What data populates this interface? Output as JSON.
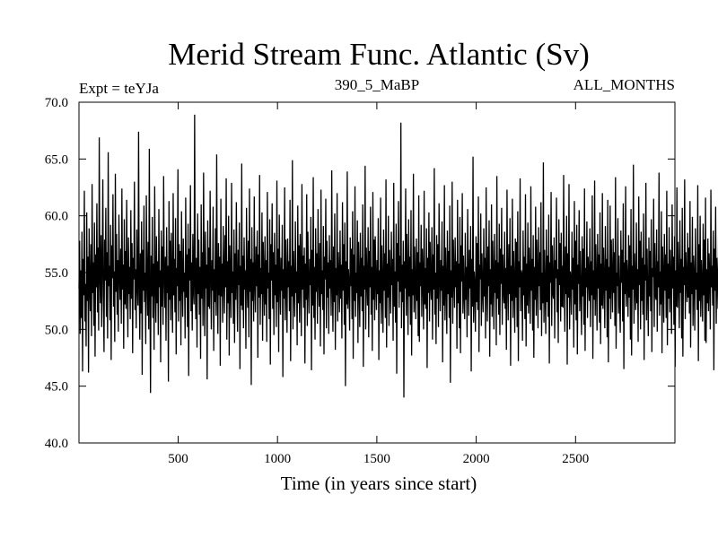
{
  "chart_data": {
    "type": "line",
    "title": "Merid Stream Func. Atlantic (Sv)",
    "subtitle_left": "Expt = teYJa",
    "subtitle_center": "390_5_MaBP",
    "subtitle_right": "ALL_MONTHS",
    "xlabel": "Time (in years since start)",
    "ylabel": "",
    "xlim": [
      1,
      3000
    ],
    "ylim": [
      40.0,
      70.0
    ],
    "x_ticks": [
      500,
      1000,
      1500,
      2000,
      2500
    ],
    "x_tick_labels": [
      "500",
      "1000",
      "1500",
      "2000",
      "2500"
    ],
    "y_ticks": [
      40,
      45,
      50,
      55,
      60,
      65,
      70
    ],
    "y_tick_labels": [
      "40.0",
      "45.0",
      "50.0",
      "55.0",
      "60.0",
      "65.0",
      "70.0"
    ],
    "grid": false,
    "line_color": "#000000",
    "series": [
      {
        "x_start": 1,
        "x_step": 3,
        "values": [
          53.6,
          57.8,
          49.6,
          55.2,
          51.0,
          58.6,
          46.3,
          56.2,
          53.0,
          62.2,
          50.7,
          54.0,
          48.5,
          60.3,
          52.5,
          56.4,
          46.2,
          58.9,
          54.2,
          51.6,
          57.5,
          49.4,
          62.8,
          53.2,
          55.9,
          50.3,
          59.4,
          47.6,
          56.6,
          53.7,
          61.1,
          51.5,
          57.2,
          49.9,
          66.9,
          54.6,
          52.3,
          58.3,
          50.2,
          55.4,
          63.2,
          52.8,
          48.0,
          57.9,
          54.3,
          60.7,
          51.1,
          56.8,
          49.2,
          65.6,
          53.8,
          55.6,
          50.8,
          59.2,
          47.3,
          57.4,
          54.5,
          61.9,
          52.0,
          55.1,
          48.9,
          63.7,
          53.3,
          58.4,
          51.3,
          56.1,
          49.8,
          60.1,
          54.9,
          52.6,
          57.1,
          50.5,
          62.4,
          53.5,
          55.7,
          48.3,
          59.7,
          52.2,
          56.9,
          51.8,
          61.4,
          54.1,
          49.3,
          58.1,
          53.1,
          55.5,
          50.9,
          60.5,
          52.7,
          57.6,
          47.9,
          56.3,
          54.4,
          63.0,
          51.7,
          55.3,
          50.1,
          58.8,
          53.9,
          52.1,
          67.4,
          54.0,
          49.1,
          56.7,
          51.4,
          59.5,
          46.0,
          57.0,
          53.4,
          60.9,
          52.4,
          55.0,
          48.7,
          61.8,
          54.7,
          51.2,
          57.7,
          50.0,
          65.9,
          53.6,
          44.4,
          56.5,
          52.9,
          59.9,
          51.0,
          55.8,
          48.2,
          62.6,
          54.2,
          50.6,
          58.2,
          52.3,
          56.0,
          49.5,
          60.6,
          53.7,
          55.2,
          47.1,
          58.7,
          52.0,
          57.3,
          50.4,
          63.5,
          54.8,
          51.9,
          56.4,
          49.0,
          59.0,
          53.2,
          55.6,
          45.4,
          61.3,
          52.6,
          57.8,
          50.8,
          58.5,
          54.1,
          49.7,
          62.0,
          53.0,
          56.2,
          51.5,
          59.8,
          47.8,
          55.4,
          53.8,
          64.1,
          50.7,
          57.5,
          52.5,
          56.9,
          48.6,
          60.4,
          54.6,
          51.1,
          58.0,
          53.3,
          55.0,
          49.2,
          61.6,
          52.8,
          56.6,
          50.2,
          59.3,
          45.9,
          57.1,
          54.3,
          62.7,
          51.6,
          55.9,
          49.9,
          58.4,
          53.5,
          52.2,
          68.9,
          54.0,
          50.9,
          56.3,
          48.4,
          60.2,
          53.1,
          57.9,
          51.3,
          55.5,
          47.4,
          61.0,
          52.7,
          56.8,
          50.3,
          63.8,
          54.5,
          49.4,
          58.6,
          53.6,
          55.7,
          45.6,
          59.6,
          52.0,
          57.2,
          51.8,
          62.2,
          54.9,
          50.0,
          56.1,
          53.4,
          60.8,
          48.1,
          55.3,
          52.4,
          58.9,
          51.2,
          65.4,
          54.2,
          49.6,
          57.6,
          53.0,
          56.4,
          46.8,
          61.5,
          52.9,
          55.8,
          50.6,
          59.1,
          54.7,
          51.4,
          58.3,
          53.7,
          63.3,
          49.1,
          56.0,
          52.3,
          60.0,
          47.7,
          57.4,
          54.4,
          51.0,
          62.9,
          53.2,
          55.1,
          50.5,
          58.8,
          48.8,
          56.7,
          52.6,
          61.2,
          54.1,
          49.8,
          57.0,
          53.9,
          59.4,
          46.5,
          55.6,
          52.1,
          64.6,
          51.7,
          56.5,
          50.1,
          58.1,
          53.5,
          55.2,
          48.3,
          60.7,
          54.6,
          51.9,
          57.8,
          49.3,
          62.4,
          53.3,
          56.2,
          45.1,
          59.0,
          52.5,
          55.9,
          50.7,
          61.7,
          54.0,
          51.5,
          57.3,
          53.8,
          58.7,
          47.5,
          56.6,
          52.8,
          63.6,
          50.4,
          55.4,
          53.1,
          60.3,
          49.0,
          57.7,
          54.8,
          51.2,
          58.2,
          52.2,
          56.1,
          48.9,
          62.1,
          53.6,
          55.0,
          50.9,
          59.7,
          46.9,
          57.5,
          54.3,
          61.1,
          51.8,
          56.8,
          49.5,
          58.5,
          53.0,
          55.7,
          50.2,
          63.1,
          52.4,
          57.1,
          48.0,
          60.1,
          54.5,
          51.3,
          56.3,
          53.4,
          59.2,
          45.8,
          55.3,
          52.7,
          62.5,
          50.8,
          57.9,
          54.2,
          49.7,
          58.0,
          53.7,
          56.0,
          51.6,
          61.4,
          47.2,
          55.6,
          52.9,
          64.9,
          50.0,
          56.9,
          54.1,
          51.1,
          59.5,
          53.2,
          55.1,
          48.6,
          60.9,
          52.3,
          57.4,
          50.6,
          58.4,
          54.7,
          49.4,
          62.8,
          53.5,
          56.5,
          51.9,
          57.2,
          47.0,
          55.8,
          52.6,
          61.9,
          50.3,
          58.6,
          54.0,
          51.4,
          56.2,
          53.9,
          59.9,
          46.4,
          57.0,
          52.1,
          63.4,
          51.0,
          55.5,
          49.1,
          58.9,
          53.3,
          56.7,
          50.5,
          60.6,
          54.6,
          52.0,
          57.6,
          48.5,
          62.3,
          53.1,
          55.2,
          51.7,
          59.1,
          47.8,
          56.4,
          54.4,
          61.5,
          50.1,
          57.8,
          52.8,
          55.9,
          49.6,
          58.3,
          53.6,
          56.1,
          51.2,
          64.0,
          54.2,
          49.8,
          57.3,
          52.4,
          60.2,
          48.2,
          55.4,
          53.0,
          62.0,
          50.7,
          56.8,
          54.8,
          51.5,
          58.7,
          52.7,
          55.7,
          49.2,
          61.2,
          53.4,
          57.5,
          50.4,
          59.4,
          45.0,
          56.0,
          52.2,
          63.9,
          51.8,
          55.3,
          54.1,
          49.9,
          58.1,
          53.8,
          57.1,
          50.9,
          60.4,
          47.4,
          56.6,
          52.5,
          62.6,
          51.1,
          55.0,
          53.2,
          59.6,
          48.8,
          57.7,
          54.5,
          50.2,
          58.5,
          52.9,
          56.3,
          51.6,
          61.0,
          46.7,
          55.6,
          53.5,
          64.4,
          50.0,
          57.2,
          54.3,
          52.1,
          59.0,
          49.3,
          56.9,
          53.7,
          60.8,
          51.3,
          55.5,
          48.1,
          62.1,
          52.6,
          57.9,
          50.8,
          58.2,
          54.6,
          51.7,
          56.1,
          53.1,
          59.8,
          47.3,
          55.2,
          52.3,
          61.6,
          50.5,
          57.4,
          54.0,
          49.7,
          58.8,
          53.4,
          56.7,
          51.0,
          63.2,
          48.4,
          55.8,
          52.8,
          60.0,
          50.3,
          57.0,
          54.4,
          51.4,
          58.6,
          53.9,
          56.2,
          49.0,
          62.9,
          52.0,
          55.1,
          50.6,
          59.3,
          46.1,
          57.6,
          54.2,
          61.3,
          51.9,
          56.5,
          53.3,
          68.2,
          50.1,
          55.7,
          52.4,
          57.8,
          44.0,
          56.0,
          53.6,
          62.4,
          51.2,
          58.4,
          54.7,
          49.5,
          59.7,
          52.9,
          56.4,
          50.4,
          60.5,
          47.7,
          55.3,
          53.0,
          63.7,
          51.5,
          57.3,
          54.1,
          50.9,
          58.0,
          52.5,
          56.8,
          49.4,
          61.8,
          48.9,
          55.9,
          53.8,
          59.2,
          51.1,
          57.1,
          54.5,
          50.0,
          62.2,
          52.2,
          55.4,
          51.8,
          58.9,
          46.6,
          56.3,
          53.2,
          60.3,
          50.7,
          57.7,
          54.0,
          52.6,
          59.0,
          49.1,
          56.6,
          53.5,
          64.2,
          51.3,
          55.0,
          48.7,
          58.3,
          52.7,
          57.5,
          50.2,
          61.1,
          54.8,
          51.6,
          56.1,
          53.4,
          59.5,
          47.1,
          55.6,
          52.1,
          62.7,
          50.8,
          57.2,
          54.3,
          49.6,
          58.7,
          53.1,
          56.9,
          51.0,
          60.9,
          45.3,
          55.2,
          52.8,
          63.0,
          50.5,
          57.9,
          54.6,
          51.9,
          58.1,
          53.7,
          56.0,
          48.3,
          61.4,
          52.3,
          55.8,
          50.1,
          59.9,
          47.9,
          57.4,
          54.2,
          62.0,
          51.4,
          56.5,
          53.0,
          50.9,
          58.5,
          52.6,
          55.5,
          49.3,
          60.6,
          54.7,
          51.2,
          57.0,
          53.6,
          59.1,
          46.3,
          56.2,
          52.0,
          65.2,
          50.6,
          55.1,
          53.9,
          49.8,
          58.2,
          52.4,
          57.6,
          51.7,
          61.7,
          48.0,
          55.7,
          54.4,
          60.2,
          50.3,
          56.7,
          53.3,
          51.5,
          58.9,
          52.9,
          56.3,
          49.2,
          62.5,
          54.1,
          50.7,
          57.3,
          53.8,
          59.6,
          47.6,
          55.3,
          52.2,
          61.0,
          51.1,
          57.8,
          54.5,
          50.0,
          58.4,
          53.2,
          56.1,
          48.6,
          63.5,
          52.7,
          55.9,
          51.3,
          59.3,
          49.5,
          57.1,
          54.0,
          60.7,
          50.4,
          56.6,
          53.5,
          52.3,
          58.6,
          51.8,
          55.4,
          48.2,
          62.3,
          54.6,
          50.8,
          57.5,
          53.1,
          59.8,
          46.8,
          55.6,
          52.5,
          61.5,
          51.0,
          56.9,
          54.3,
          49.7,
          58.0,
          52.8,
          57.7,
          50.2,
          60.4,
          47.2,
          56.0,
          53.7,
          63.3,
          51.6,
          55.2,
          54.8,
          49.0,
          58.7,
          53.0,
          56.4,
          50.9,
          61.9,
          48.5,
          55.8,
          52.1,
          59.4,
          51.4,
          57.2,
          54.2,
          50.5,
          62.6,
          53.4,
          56.2,
          49.9,
          58.3,
          47.5,
          55.5,
          52.6,
          60.8,
          51.2,
          57.9,
          54.7,
          50.1,
          59.0,
          53.8,
          56.8,
          51.7,
          61.2,
          49.4,
          55.0,
          52.3,
          64.7,
          50.6,
          57.0,
          53.6,
          49.6,
          58.8,
          52.4,
          56.5,
          51.1,
          60.1,
          47.0,
          55.9,
          54.1,
          62.1,
          50.3,
          57.4,
          53.2,
          52.7,
          58.1,
          49.2,
          56.1,
          54.5,
          61.6,
          51.5,
          55.3,
          48.8,
          59.7,
          53.9,
          57.6,
          50.7,
          58.5,
          52.0,
          55.6,
          51.9,
          63.6,
          54.3,
          49.8,
          57.3,
          53.1,
          60.0,
          46.9,
          56.7,
          52.8,
          62.8,
          50.0,
          55.1,
          54.6,
          51.3,
          58.6,
          53.5,
          56.3,
          48.4,
          61.3,
          52.2,
          57.8,
          50.8,
          59.2,
          47.8,
          55.7,
          54.0,
          60.5,
          51.6,
          56.9,
          53.3,
          49.5,
          58.2,
          52.9,
          57.1,
          50.4,
          62.4,
          48.1,
          55.4,
          53.7,
          59.5,
          51.0,
          56.4,
          54.8,
          52.5,
          58.9,
          50.2,
          56.0,
          53.0,
          61.8,
          47.4,
          55.2,
          52.6,
          63.1,
          51.2,
          57.5,
          54.4,
          49.9,
          58.4,
          53.6,
          56.6,
          50.6,
          60.3,
          48.7,
          55.8,
          52.1,
          62.0,
          51.8,
          57.2,
          54.2,
          50.1,
          59.1,
          53.4,
          56.2,
          49.3,
          61.4,
          47.1,
          55.5,
          52.7,
          60.9,
          50.9,
          57.9,
          54.7,
          51.5,
          58.0,
          53.2,
          56.8,
          50.3,
          63.4,
          48.3,
          55.0,
          53.8,
          59.8,
          51.4,
          56.5,
          52.4,
          49.7,
          58.7,
          54.1,
          57.0,
          50.7,
          61.1,
          46.5,
          55.9,
          53.1,
          62.6,
          52.0,
          56.1,
          54.5,
          51.1,
          58.3,
          52.8,
          57.4,
          49.1,
          60.6,
          47.7,
          55.6,
          53.5,
          64.5,
          50.5,
          56.7,
          54.0,
          51.7,
          59.4,
          52.3,
          55.3,
          48.9,
          61.7,
          53.9,
          57.8,
          50.0,
          58.6,
          52.5,
          56.3,
          51.3,
          60.2,
          47.3,
          55.7,
          54.3,
          62.9,
          50.8,
          57.1,
          53.3,
          49.4,
          58.1,
          52.9,
          56.9,
          51.6,
          59.7,
          48.0,
          55.4,
          54.6,
          61.5,
          50.2,
          57.6,
          53.0,
          52.6,
          58.8,
          49.8,
          56.0,
          53.7,
          63.8,
          51.2,
          55.1,
          52.2,
          60.4,
          47.9,
          57.3,
          54.8,
          50.6,
          58.4,
          53.4,
          56.6,
          51.0,
          62.2,
          48.6,
          55.8,
          52.7,
          59.0,
          51.5,
          57.0,
          54.2,
          49.6,
          61.0,
          53.6,
          56.4,
          50.4,
          58.2,
          46.7,
          55.2,
          52.0,
          62.5,
          51.9,
          57.7,
          54.1,
          50.1,
          59.6,
          53.2,
          56.2,
          49.2,
          60.7,
          47.6,
          55.5,
          53.9,
          63.2,
          50.9,
          56.8,
          54.4,
          52.4,
          58.5,
          52.8,
          57.2,
          51.4,
          61.3,
          48.4,
          55.9,
          53.1,
          59.9,
          50.3,
          56.5,
          54.7,
          49.9,
          58.9,
          53.5,
          55.0,
          51.7,
          62.7,
          47.2,
          57.5,
          52.5,
          60.0,
          51.1,
          56.1,
          54.0,
          50.7,
          59.3,
          53.0,
          57.9,
          49.0,
          61.6,
          48.8,
          55.3,
          52.3,
          58.0,
          51.6,
          56.7,
          54.5,
          50.0,
          62.3,
          53.7,
          55.6,
          52.1,
          58.7,
          46.4,
          57.1,
          53.4,
          60.8,
          50.5,
          56.3,
          54.3,
          51.8,
          59.2,
          52.6,
          55.7,
          49.5,
          61.9,
          47.8,
          57.4,
          53.8,
          60.1,
          51.3,
          56.0,
          54.6,
          50.8,
          58.3,
          52.2,
          56.9,
          49.3,
          59.5,
          51.9,
          55.4,
          53.3,
          57.8,
          50.2,
          55.8,
          54.2,
          51.4,
          58.6,
          52.0,
          53.5
        ]
      }
    ]
  }
}
